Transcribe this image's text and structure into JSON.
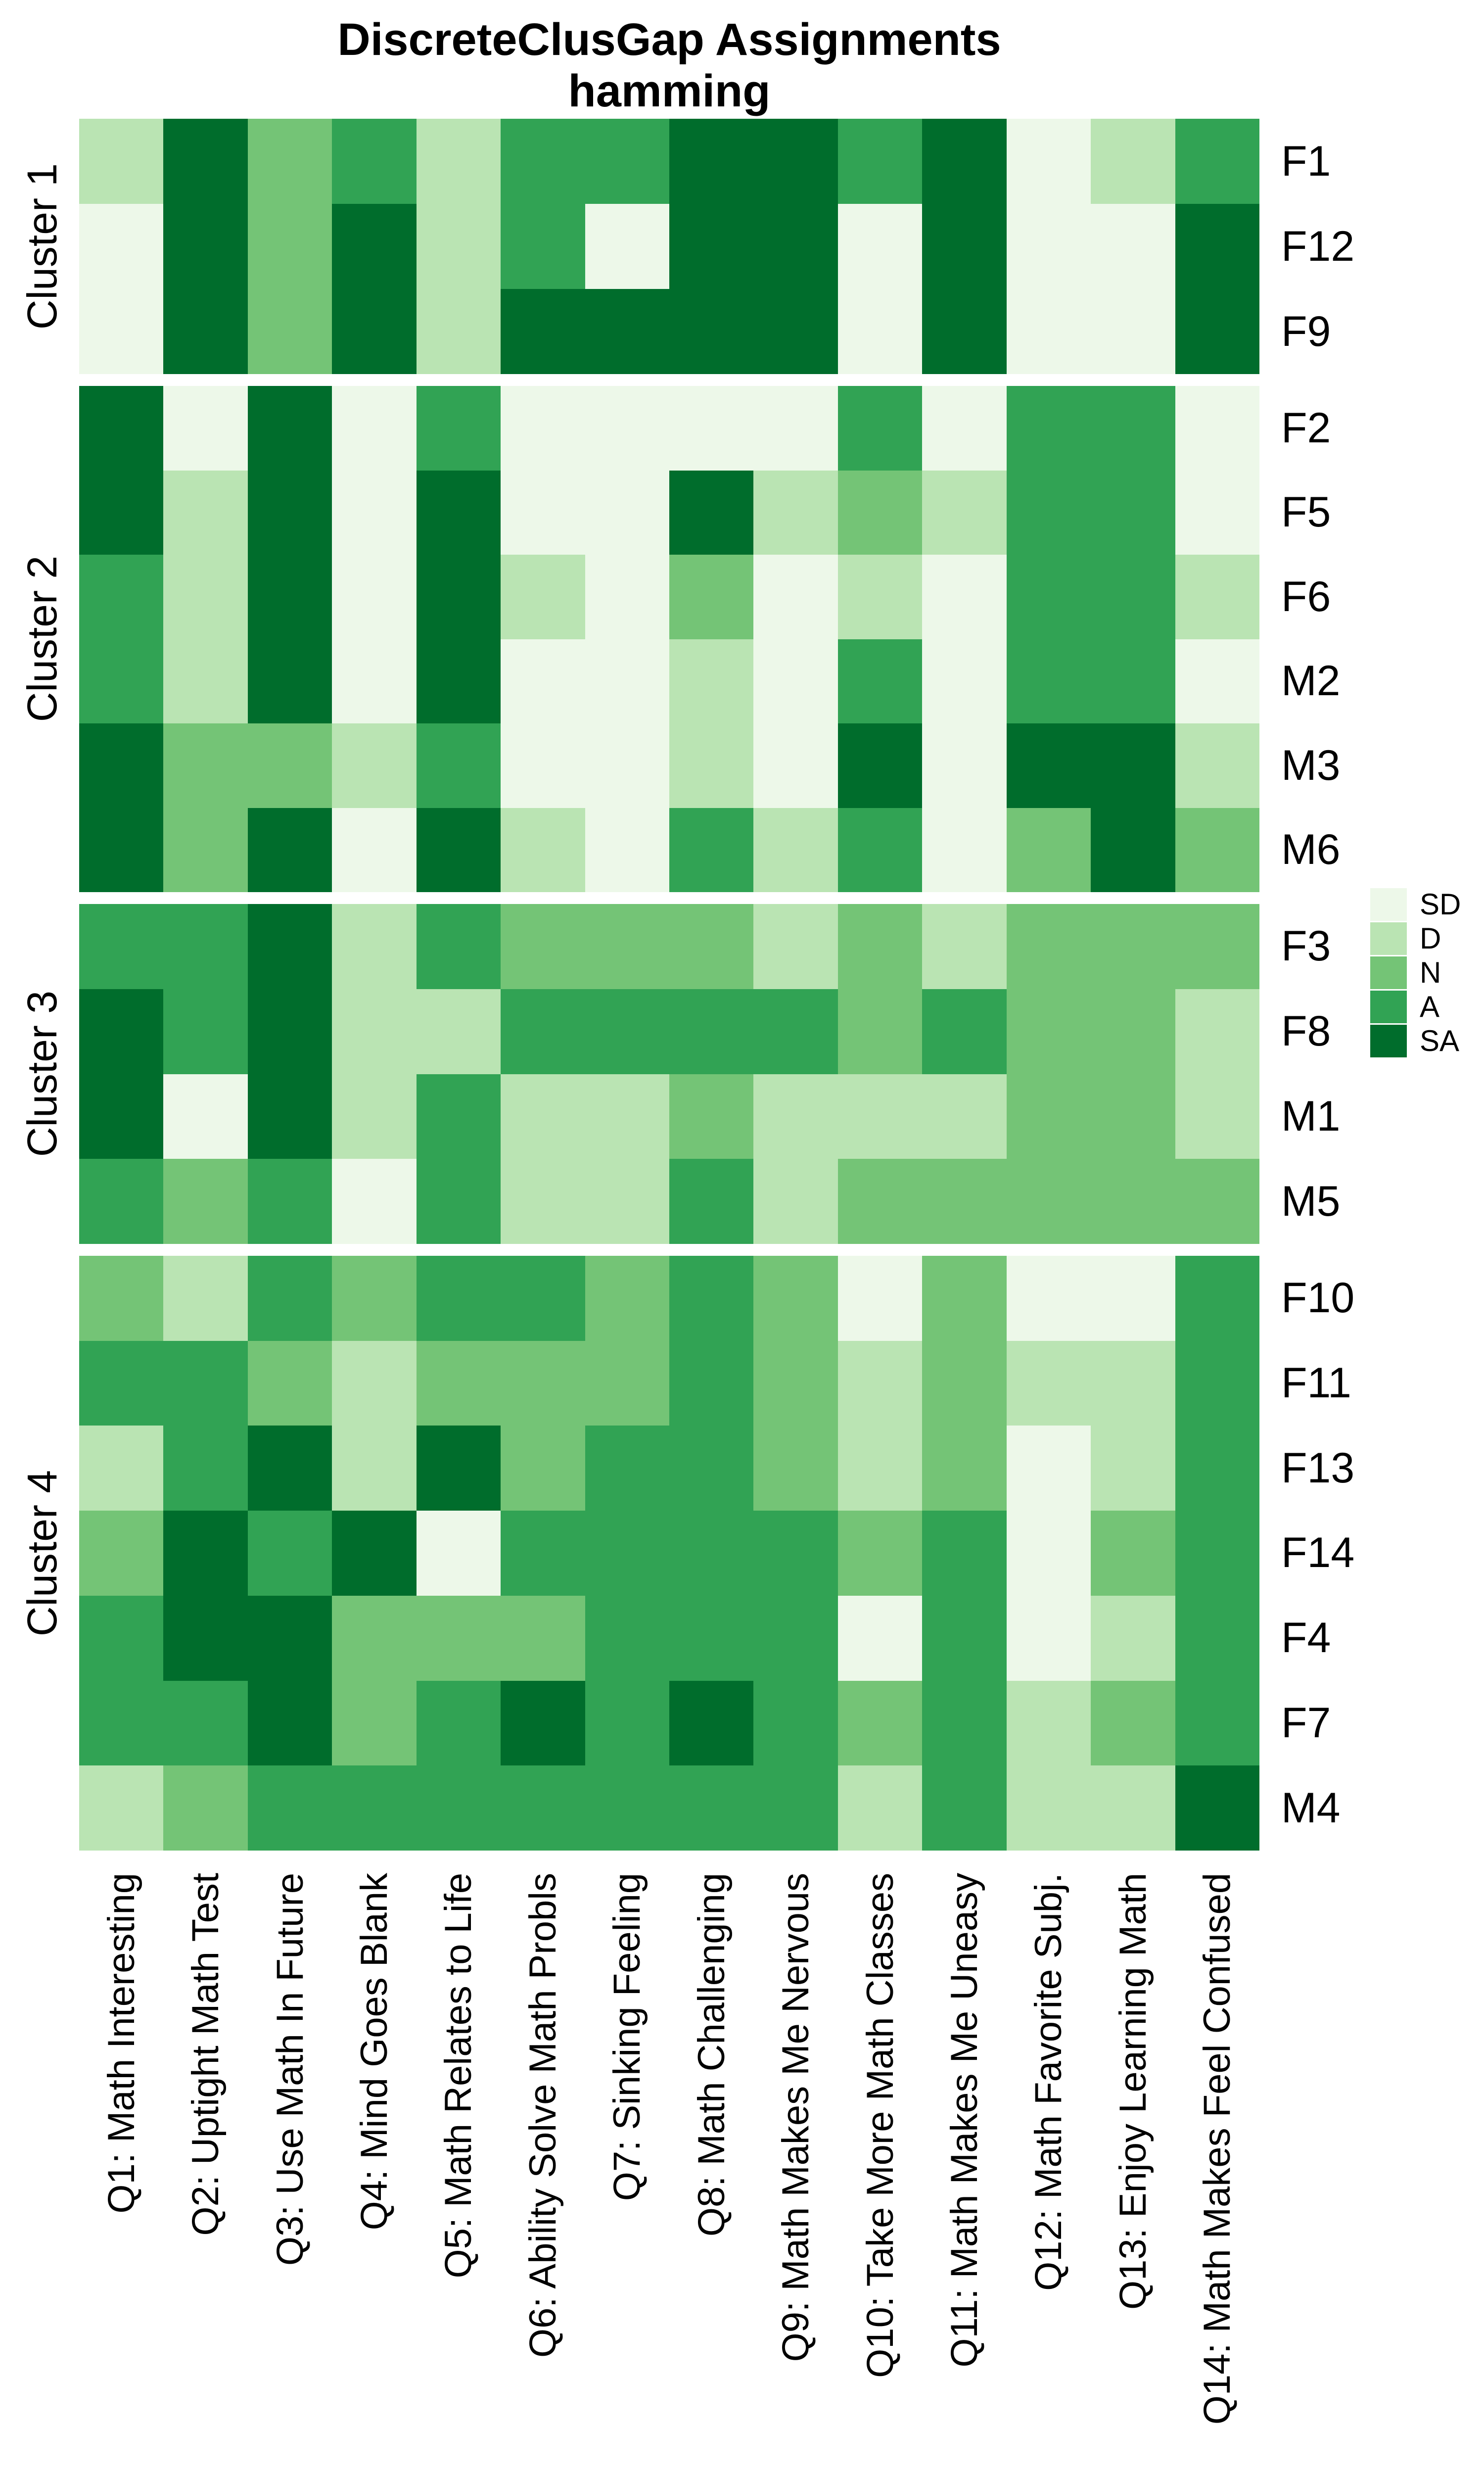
{
  "title": {
    "line1": "DiscreteClusGap Assignments",
    "line2": "hamming"
  },
  "legend": {
    "entries": [
      {
        "label": "SD",
        "color": "#EDF8E9"
      },
      {
        "label": "D",
        "color": "#BAE4B3"
      },
      {
        "label": "N",
        "color": "#74C476"
      },
      {
        "label": "A",
        "color": "#31A354"
      },
      {
        "label": "SA",
        "color": "#006D2C"
      }
    ]
  },
  "chart_data": {
    "type": "heatmap",
    "title": "DiscreteClusGap Assignments",
    "subtitle": "hamming",
    "value_scale": [
      "SD",
      "D",
      "N",
      "A",
      "SA"
    ],
    "colors": {
      "SD": "#EDF8E9",
      "D": "#BAE4B3",
      "N": "#74C476",
      "A": "#31A354",
      "SA": "#006D2C"
    },
    "legend_position": "right",
    "columns": [
      "Q1: Math Interesting",
      "Q2: Uptight Math Test",
      "Q3: Use Math In Future",
      "Q4: Mind Goes Blank",
      "Q5: Math Relates to Life",
      "Q6: Ability Solve Math Probls",
      "Q7: Sinking Feeling",
      "Q8: Math Challenging",
      "Q9: Math Makes Me Nervous",
      "Q10: Take More Math Classes",
      "Q11: Math Makes Me Uneasy",
      "Q12: Math Favorite Subj.",
      "Q13: Enjoy Learning Math",
      "Q14: Math Makes Feel Confused"
    ],
    "clusters": [
      {
        "name": "Cluster 1",
        "rows": [
          {
            "label": "F1",
            "values": [
              "D",
              "SA",
              "N",
              "A",
              "D",
              "A",
              "A",
              "SA",
              "SA",
              "A",
              "SA",
              "SD",
              "D",
              "A"
            ]
          },
          {
            "label": "F12",
            "values": [
              "SD",
              "SA",
              "N",
              "SA",
              "D",
              "A",
              "SD",
              "SA",
              "SA",
              "SD",
              "SA",
              "SD",
              "SD",
              "SA"
            ]
          },
          {
            "label": "F9",
            "values": [
              "SD",
              "SA",
              "N",
              "SA",
              "D",
              "SA",
              "SA",
              "SA",
              "SA",
              "SD",
              "SA",
              "SD",
              "SD",
              "SA"
            ]
          }
        ]
      },
      {
        "name": "Cluster 2",
        "rows": [
          {
            "label": "F2",
            "values": [
              "SA",
              "SD",
              "SA",
              "SD",
              "A",
              "SD",
              "SD",
              "SD",
              "SD",
              "A",
              "SD",
              "A",
              "A",
              "SD"
            ]
          },
          {
            "label": "F5",
            "values": [
              "SA",
              "D",
              "SA",
              "SD",
              "SA",
              "SD",
              "SD",
              "SA",
              "D",
              "N",
              "D",
              "A",
              "A",
              "SD"
            ]
          },
          {
            "label": "F6",
            "values": [
              "A",
              "D",
              "SA",
              "SD",
              "SA",
              "D",
              "SD",
              "N",
              "SD",
              "D",
              "SD",
              "A",
              "A",
              "D"
            ]
          },
          {
            "label": "M2",
            "values": [
              "A",
              "D",
              "SA",
              "SD",
              "SA",
              "SD",
              "SD",
              "D",
              "SD",
              "A",
              "SD",
              "A",
              "A",
              "SD"
            ]
          },
          {
            "label": "M3",
            "values": [
              "SA",
              "N",
              "N",
              "D",
              "A",
              "SD",
              "SD",
              "D",
              "SD",
              "SA",
              "SD",
              "SA",
              "SA",
              "D"
            ]
          },
          {
            "label": "M6",
            "values": [
              "SA",
              "N",
              "SA",
              "SD",
              "SA",
              "D",
              "SD",
              "A",
              "D",
              "A",
              "SD",
              "N",
              "SA",
              "N"
            ]
          }
        ]
      },
      {
        "name": "Cluster 3",
        "rows": [
          {
            "label": "F3",
            "values": [
              "A",
              "A",
              "SA",
              "D",
              "A",
              "N",
              "N",
              "N",
              "D",
              "N",
              "D",
              "N",
              "N",
              "N"
            ]
          },
          {
            "label": "F8",
            "values": [
              "SA",
              "A",
              "SA",
              "D",
              "D",
              "A",
              "A",
              "A",
              "A",
              "N",
              "A",
              "N",
              "N",
              "D"
            ]
          },
          {
            "label": "M1",
            "values": [
              "SA",
              "SD",
              "SA",
              "D",
              "A",
              "D",
              "D",
              "N",
              "D",
              "D",
              "D",
              "N",
              "N",
              "D"
            ]
          },
          {
            "label": "M5",
            "values": [
              "A",
              "N",
              "A",
              "SD",
              "A",
              "D",
              "D",
              "A",
              "D",
              "N",
              "N",
              "N",
              "N",
              "N"
            ]
          }
        ]
      },
      {
        "name": "Cluster 4",
        "rows": [
          {
            "label": "F10",
            "values": [
              "N",
              "D",
              "A",
              "N",
              "A",
              "A",
              "N",
              "A",
              "N",
              "SD",
              "N",
              "SD",
              "SD",
              "A"
            ]
          },
          {
            "label": "F11",
            "values": [
              "A",
              "A",
              "N",
              "D",
              "N",
              "N",
              "N",
              "A",
              "N",
              "D",
              "N",
              "D",
              "D",
              "A"
            ]
          },
          {
            "label": "F13",
            "values": [
              "D",
              "A",
              "SA",
              "D",
              "SA",
              "N",
              "A",
              "A",
              "N",
              "D",
              "N",
              "SD",
              "D",
              "A"
            ]
          },
          {
            "label": "F14",
            "values": [
              "N",
              "SA",
              "A",
              "SA",
              "SD",
              "A",
              "A",
              "A",
              "A",
              "N",
              "A",
              "SD",
              "N",
              "A"
            ]
          },
          {
            "label": "F4",
            "values": [
              "A",
              "SA",
              "SA",
              "N",
              "N",
              "N",
              "A",
              "A",
              "A",
              "SD",
              "A",
              "SD",
              "D",
              "A"
            ]
          },
          {
            "label": "F7",
            "values": [
              "A",
              "A",
              "SA",
              "N",
              "A",
              "SA",
              "A",
              "SA",
              "A",
              "N",
              "A",
              "D",
              "N",
              "A"
            ]
          },
          {
            "label": "M4",
            "values": [
              "D",
              "N",
              "A",
              "A",
              "A",
              "A",
              "A",
              "A",
              "A",
              "D",
              "A",
              "D",
              "D",
              "SA"
            ]
          }
        ]
      }
    ]
  }
}
